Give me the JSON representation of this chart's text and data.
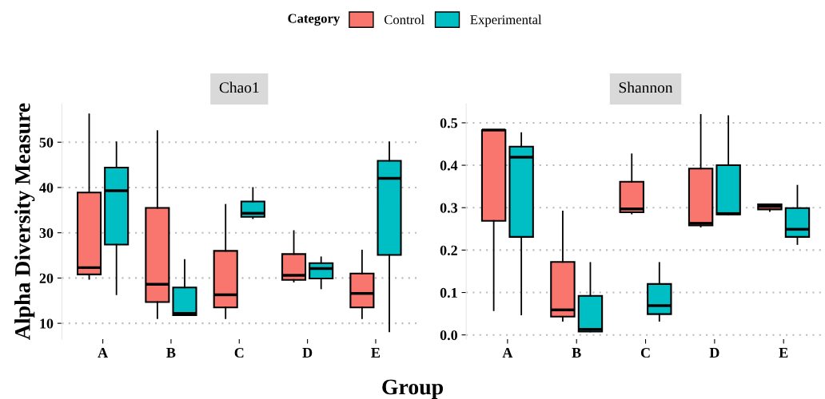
{
  "chart_data": [
    {
      "type": "box",
      "title": "Chao1",
      "xlabel": "Group",
      "ylabel": "Alpha Diversity Measure",
      "legend_title": "Category",
      "legend": "top",
      "grid": "y",
      "categories": [
        "A",
        "B",
        "C",
        "D",
        "E"
      ],
      "ylim": [
        6.5,
        58.5
      ],
      "yticks": [
        10,
        20,
        30,
        40,
        50
      ],
      "series": [
        {
          "name": "Control",
          "color": "#f8766d",
          "boxes": [
            {
              "low": 19.8,
              "q1": 20.8,
              "median": 22.3,
              "q3": 38.9,
              "high": 56.2
            },
            {
              "low": 11.1,
              "q1": 14.7,
              "median": 18.6,
              "q3": 35.5,
              "high": 52.5
            },
            {
              "low": 11.1,
              "q1": 13.5,
              "median": 16.3,
              "q3": 26.0,
              "high": 36.2
            },
            {
              "low": 19.2,
              "q1": 19.6,
              "median": 20.6,
              "q3": 25.3,
              "high": 30.4
            },
            {
              "low": 11.1,
              "q1": 13.5,
              "median": 16.6,
              "q3": 21.0,
              "high": 26.1
            }
          ]
        },
        {
          "name": "Experimental",
          "color": "#00bfc4",
          "boxes": [
            {
              "low": 16.4,
              "q1": 27.4,
              "median": 39.3,
              "q3": 44.4,
              "high": 50.0
            },
            {
              "low": 11.8,
              "q1": 11.8,
              "median": 12.2,
              "q3": 17.9,
              "high": 24.0
            },
            {
              "low": 33.2,
              "q1": 33.5,
              "median": 34.3,
              "q3": 36.9,
              "high": 39.9
            },
            {
              "low": 17.7,
              "q1": 19.9,
              "median": 22.1,
              "q3": 23.3,
              "high": 24.6
            },
            {
              "low": 8.2,
              "q1": 25.1,
              "median": 42.0,
              "q3": 45.9,
              "high": 50.0
            }
          ]
        }
      ]
    },
    {
      "type": "box",
      "title": "Shannon",
      "grid": "y",
      "categories": [
        "A",
        "B",
        "C",
        "D",
        "E"
      ],
      "ylim": [
        -0.01,
        0.545
      ],
      "yticks": [
        {
          "value": 0,
          "label": "0.0"
        },
        0.1,
        0.2,
        0.3,
        0.4,
        0.5
      ],
      "series": [
        {
          "color": "#f8766d",
          "boxes": [
            {
              "low": 0.058,
              "q1": 0.269,
              "median": 0.483,
              "q3": 0.483,
              "high": 0.483
            },
            {
              "low": 0.033,
              "q1": 0.043,
              "median": 0.059,
              "q3": 0.172,
              "high": 0.291
            },
            {
              "low": 0.286,
              "q1": 0.289,
              "median": 0.297,
              "q3": 0.361,
              "high": 0.426
            },
            {
              "low": 0.255,
              "q1": 0.258,
              "median": 0.263,
              "q3": 0.392,
              "high": 0.519
            },
            {
              "low": 0.292,
              "q1": 0.296,
              "median": 0.303,
              "q3": 0.308,
              "high": 0.308
            }
          ]
        },
        {
          "color": "#00bfc4",
          "boxes": [
            {
              "low": 0.048,
              "q1": 0.231,
              "median": 0.419,
              "q3": 0.444,
              "high": 0.476
            },
            {
              "low": 0.008,
              "q1": 0.008,
              "median": 0.013,
              "q3": 0.092,
              "high": 0.17
            },
            {
              "low": 0.033,
              "q1": 0.049,
              "median": 0.069,
              "q3": 0.12,
              "high": 0.17
            },
            {
              "low": 0.284,
              "q1": 0.284,
              "median": 0.286,
              "q3": 0.4,
              "high": 0.516
            },
            {
              "low": 0.214,
              "q1": 0.231,
              "median": 0.249,
              "q3": 0.299,
              "high": 0.352
            }
          ]
        }
      ]
    }
  ]
}
